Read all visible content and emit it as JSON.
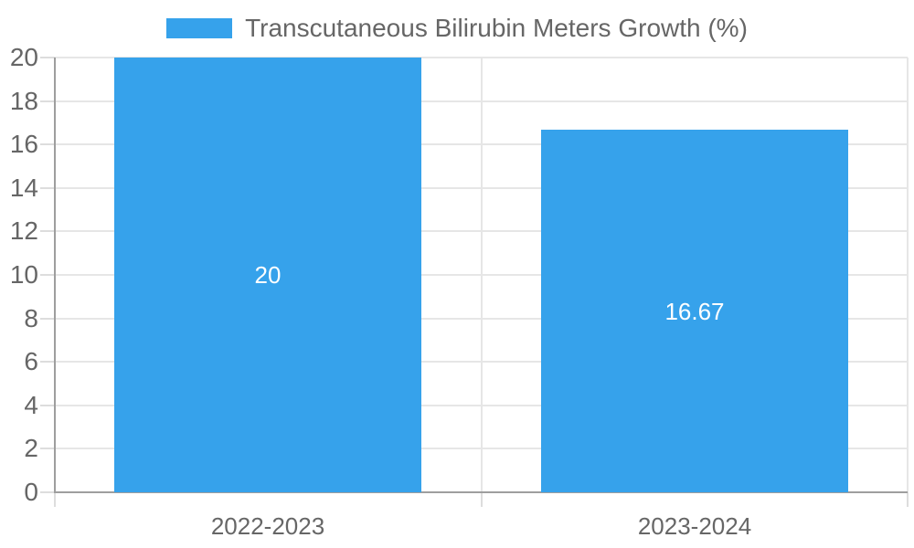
{
  "legend": {
    "label": "Transcutaneous Bilirubin Meters Growth (%)"
  },
  "chart_data": {
    "type": "bar",
    "title": "Transcutaneous Bilirubin Meters Growth (%)",
    "categories": [
      "2022-2023",
      "2023-2024"
    ],
    "series": [
      {
        "name": "Transcutaneous Bilirubin Meters Growth (%)",
        "values": [
          20,
          16.67
        ],
        "value_labels": [
          "20",
          "16.67"
        ],
        "color": "#36A2EB"
      }
    ],
    "xlabel": "",
    "ylabel": "",
    "ylim": [
      0,
      20
    ],
    "yticks": [
      0,
      2,
      4,
      6,
      8,
      10,
      12,
      14,
      16,
      18,
      20
    ],
    "grid": true,
    "legend_position": "top",
    "colors": {
      "bar": "#36A2EB",
      "value_label": "#ffffff",
      "axis_text": "#666666",
      "gridline": "#e6e6e6",
      "tick_mark": "#dddddd",
      "axis_line": "#9e9e9e"
    }
  }
}
